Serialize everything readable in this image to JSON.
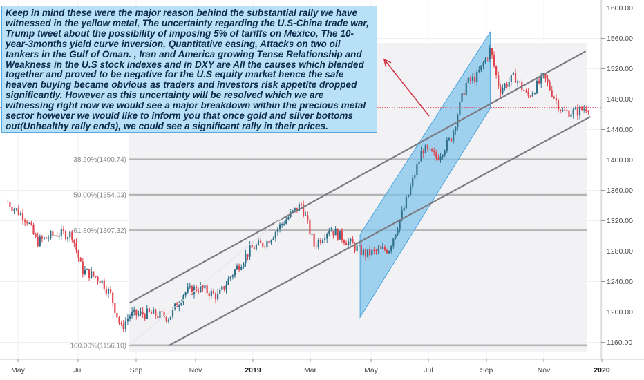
{
  "chart_data": {
    "type": "candlestick",
    "y_axis": {
      "ticks": [
        1160,
        1200,
        1240,
        1280,
        1320,
        1360,
        1400,
        1440,
        1480,
        1520,
        1560,
        1600
      ],
      "ylim": [
        1150,
        1605
      ]
    },
    "x_axis": {
      "ticks": [
        "May",
        "Jul",
        "Sep",
        "Nov",
        "2019",
        "Mar",
        "May",
        "Jul",
        "Sep",
        "Nov",
        "2020"
      ],
      "bold": [
        "2019",
        "2020"
      ]
    },
    "fib_levels": [
      {
        "label": "38.20%(1400.74)",
        "value": 1400.74
      },
      {
        "label": "50.00%(1354.03)",
        "value": 1354.03
      },
      {
        "label": "61.80%(1307.32)",
        "value": 1307.32
      },
      {
        "label": "100.00%(1156.10)",
        "value": 1156.1
      }
    ],
    "current_price": 1469,
    "price_path": [
      {
        "x": "2018-04-20",
        "y": 1345
      },
      {
        "x": "2018-05-10",
        "y": 1322
      },
      {
        "x": "2018-05-20",
        "y": 1292
      },
      {
        "x": "2018-06-10",
        "y": 1303
      },
      {
        "x": "2018-06-25",
        "y": 1302
      },
      {
        "x": "2018-07-05",
        "y": 1255
      },
      {
        "x": "2018-07-25",
        "y": 1243
      },
      {
        "x": "2018-08-05",
        "y": 1222
      },
      {
        "x": "2018-08-16",
        "y": 1178
      },
      {
        "x": "2018-08-25",
        "y": 1196
      },
      {
        "x": "2018-09-15",
        "y": 1198
      },
      {
        "x": "2018-10-05",
        "y": 1193
      },
      {
        "x": "2018-10-20",
        "y": 1225
      },
      {
        "x": "2018-11-05",
        "y": 1232
      },
      {
        "x": "2018-11-25",
        "y": 1220
      },
      {
        "x": "2018-12-10",
        "y": 1250
      },
      {
        "x": "2018-12-30",
        "y": 1283
      },
      {
        "x": "2019-01-15",
        "y": 1292
      },
      {
        "x": "2019-02-01",
        "y": 1318
      },
      {
        "x": "2019-02-20",
        "y": 1342
      },
      {
        "x": "2019-03-05",
        "y": 1287
      },
      {
        "x": "2019-03-20",
        "y": 1310
      },
      {
        "x": "2019-04-05",
        "y": 1295
      },
      {
        "x": "2019-04-25",
        "y": 1276
      },
      {
        "x": "2019-05-20",
        "y": 1283
      },
      {
        "x": "2019-06-05",
        "y": 1336
      },
      {
        "x": "2019-06-25",
        "y": 1415
      },
      {
        "x": "2019-07-10",
        "y": 1403
      },
      {
        "x": "2019-07-25",
        "y": 1428
      },
      {
        "x": "2019-08-10",
        "y": 1500
      },
      {
        "x": "2019-08-22",
        "y": 1510
      },
      {
        "x": "2019-09-05",
        "y": 1545
      },
      {
        "x": "2019-09-15",
        "y": 1492
      },
      {
        "x": "2019-10-01",
        "y": 1510
      },
      {
        "x": "2019-10-15",
        "y": 1483
      },
      {
        "x": "2019-11-01",
        "y": 1509
      },
      {
        "x": "2019-11-20",
        "y": 1464
      },
      {
        "x": "2019-12-05",
        "y": 1463
      },
      {
        "x": "2019-12-20",
        "y": 1472
      }
    ],
    "channel_lines": [
      {
        "from": {
          "x": "2018-08-25",
          "y": 1212
        },
        "to": {
          "x": "2019-12-15",
          "y": 1543
        }
      },
      {
        "from": {
          "x": "2018-10-05",
          "y": 1156
        },
        "to": {
          "x": "2019-12-20",
          "y": 1457
        }
      }
    ],
    "rising_channel": [
      {
        "x": "2019-04-20",
        "y": 1302
      },
      {
        "x": "2019-09-05",
        "y": 1568
      },
      {
        "x": "2019-09-05",
        "y": 1468
      },
      {
        "x": "2019-04-20",
        "y": 1193
      }
    ]
  },
  "note": {
    "text": "Keep in mind these were the major reason behind the substantial rally we have witnessed in the yellow metal, The uncertainty regarding the U.S-China trade war, Trump tweet about the possibility of imposing 5% of tariffs on Mexico, The 10-year-3months yield curve inversion, Quantitative easing, Attacks on two oil tankers in the Gulf of Oman. , Iran and America growing Tense Relationship and Weakness in the U.S stock indexes and in DXY are All the causes which blended together and proved to be negative for the U.S equity market hence the safe heaven buying became obvious as traders and investors risk appetite dropped significantly. However as this uncertainty will be resolved which we are witnessing right now we would see a major breakdown within the precious metal sector however we would like to inform you that once gold and silver bottoms out(Unhealthy rally ends), we could see a significant rally in their prices."
  },
  "colors": {
    "up": "#2f6f88",
    "down": "#e0454f",
    "channel_fill": "#7ec3ec",
    "channel_stroke": "#4aa2dc",
    "trendline": "#7a7a80",
    "fib_line": "#b4b4b4",
    "arrow": "#d03040",
    "current_line": "#e05060"
  }
}
